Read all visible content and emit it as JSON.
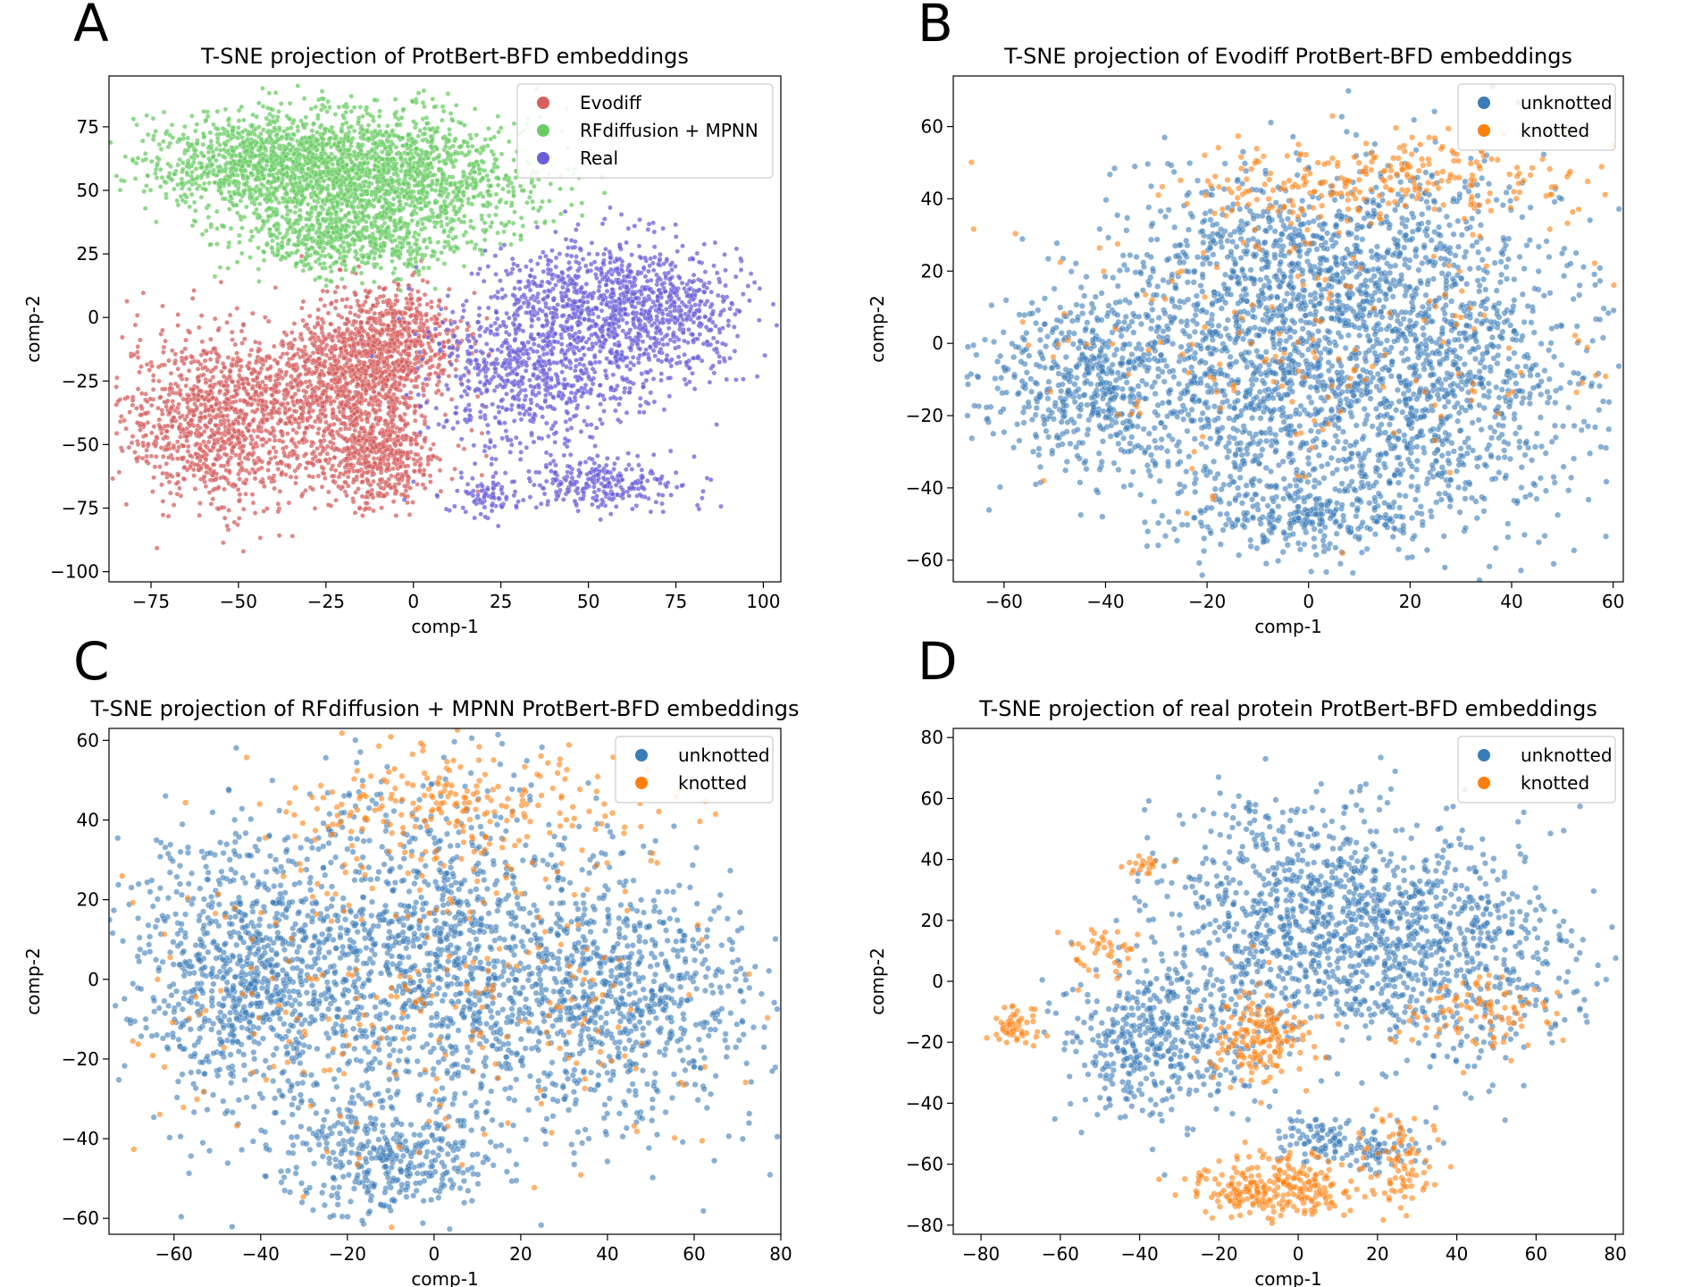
{
  "chart_data": [
    {
      "panel": "A",
      "type": "scatter",
      "title": "T-SNE projection of ProtBert-BFD embeddings",
      "xlabel": "comp-1",
      "ylabel": "comp-2",
      "xlim": [
        -87,
        105
      ],
      "ylim": [
        -104,
        95
      ],
      "xticks": [
        -75,
        -50,
        -25,
        0,
        25,
        50,
        75,
        100
      ],
      "yticks": [
        -100,
        -75,
        -50,
        -25,
        0,
        25,
        50,
        75
      ],
      "legend_position": "top-right",
      "series": [
        {
          "name": "Evodiff",
          "color": "#d65f5f",
          "clusters": [
            {
              "cx": -55,
              "cy": -40,
              "sx": 14,
              "sy": 17,
              "n": 1100
            },
            {
              "cx": -20,
              "cy": -25,
              "sx": 11,
              "sy": 15,
              "n": 900
            },
            {
              "cx": -10,
              "cy": -55,
              "sx": 9,
              "sy": 10,
              "n": 500
            },
            {
              "cx": -5,
              "cy": -10,
              "sx": 9,
              "sy": 11,
              "n": 600
            }
          ]
        },
        {
          "name": "RFdiffusion + MPNN",
          "color": "#6acc64",
          "clusters": [
            {
              "cx": -40,
              "cy": 60,
              "sx": 18,
              "sy": 10,
              "n": 1200
            },
            {
              "cx": -5,
              "cy": 55,
              "sx": 20,
              "sy": 13,
              "n": 1300
            },
            {
              "cx": -20,
              "cy": 30,
              "sx": 14,
              "sy": 7,
              "n": 500
            }
          ]
        },
        {
          "name": "Real",
          "color": "#6a5fd8",
          "clusters": [
            {
              "cx": 35,
              "cy": -20,
              "sx": 15,
              "sy": 16,
              "n": 800
            },
            {
              "cx": 70,
              "cy": 0,
              "sx": 13,
              "sy": 14,
              "n": 600
            },
            {
              "cx": 50,
              "cy": 10,
              "sx": 14,
              "sy": 11,
              "n": 400
            },
            {
              "cx": 55,
              "cy": -65,
              "sx": 13,
              "sy": 5,
              "n": 250
            },
            {
              "cx": 20,
              "cy": -70,
              "sx": 6,
              "sy": 5,
              "n": 80
            }
          ]
        }
      ]
    },
    {
      "panel": "B",
      "type": "scatter",
      "title": "T-SNE projection of Evodiff ProtBert-BFD embeddings",
      "xlabel": "comp-1",
      "ylabel": "comp-2",
      "xlim": [
        -70,
        62
      ],
      "ylim": [
        -66,
        74
      ],
      "xticks": [
        -60,
        -40,
        -20,
        0,
        20,
        40,
        60
      ],
      "yticks": [
        -60,
        -40,
        -20,
        0,
        20,
        40,
        60
      ],
      "legend_position": "top-right",
      "series": [
        {
          "name": "unknotted",
          "color": "#3a7cb8",
          "clusters": [
            {
              "cx": -45,
              "cy": -10,
              "sx": 10,
              "sy": 12,
              "n": 500
            },
            {
              "cx": -10,
              "cy": -10,
              "sx": 16,
              "sy": 22,
              "n": 1100
            },
            {
              "cx": 25,
              "cy": -10,
              "sx": 15,
              "sy": 20,
              "n": 1000
            },
            {
              "cx": 5,
              "cy": 25,
              "sx": 20,
              "sy": 13,
              "n": 700
            },
            {
              "cx": 0,
              "cy": -48,
              "sx": 12,
              "sy": 5,
              "n": 250
            }
          ]
        },
        {
          "name": "knotted",
          "color": "#ff7f0e",
          "clusters": [
            {
              "cx": 15,
              "cy": 45,
              "sx": 22,
              "sy": 6,
              "n": 250
            },
            {
              "cx": 0,
              "cy": 0,
              "sx": 28,
              "sy": 22,
              "n": 180
            }
          ]
        }
      ]
    },
    {
      "panel": "C",
      "type": "scatter",
      "title": "T-SNE projection of RFdiffusion + MPNN ProtBert-BFD embeddings",
      "xlabel": "comp-1",
      "ylabel": "comp-2",
      "xlim": [
        -75,
        80
      ],
      "ylim": [
        -64,
        63
      ],
      "xticks": [
        -60,
        -40,
        -20,
        0,
        20,
        40,
        60,
        80
      ],
      "yticks": [
        -60,
        -40,
        -20,
        0,
        20,
        40,
        60
      ],
      "legend_position": "top-right",
      "series": [
        {
          "name": "unknotted",
          "color": "#3a7cb8",
          "clusters": [
            {
              "cx": -45,
              "cy": 0,
              "sx": 13,
              "sy": 18,
              "n": 800
            },
            {
              "cx": 0,
              "cy": 5,
              "sx": 20,
              "sy": 22,
              "n": 1300
            },
            {
              "cx": 45,
              "cy": -5,
              "sx": 15,
              "sy": 16,
              "n": 700
            },
            {
              "cx": -10,
              "cy": -45,
              "sx": 12,
              "sy": 7,
              "n": 350
            }
          ]
        },
        {
          "name": "knotted",
          "color": "#ff7f0e",
          "clusters": [
            {
              "cx": 5,
              "cy": 45,
              "sx": 20,
              "sy": 7,
              "n": 200
            },
            {
              "cx": 0,
              "cy": 0,
              "sx": 35,
              "sy": 25,
              "n": 300
            }
          ]
        }
      ]
    },
    {
      "panel": "D",
      "type": "scatter",
      "title": "T-SNE projection of real protein ProtBert-BFD embeddings",
      "xlabel": "comp-1",
      "ylabel": "comp-2",
      "xlim": [
        -87,
        82
      ],
      "ylim": [
        -83,
        83
      ],
      "xticks": [
        -80,
        -60,
        -40,
        -20,
        0,
        20,
        40,
        60,
        80
      ],
      "yticks": [
        -80,
        -60,
        -40,
        -20,
        0,
        20,
        40,
        60,
        80
      ],
      "legend_position": "top-right",
      "series": [
        {
          "name": "unknotted",
          "color": "#3a7cb8",
          "clusters": [
            {
              "cx": -35,
              "cy": -20,
              "sx": 12,
              "sy": 13,
              "n": 450
            },
            {
              "cx": 0,
              "cy": 20,
              "sx": 18,
              "sy": 20,
              "n": 900
            },
            {
              "cx": 40,
              "cy": 10,
              "sx": 16,
              "sy": 18,
              "n": 600
            },
            {
              "cx": 5,
              "cy": -52,
              "sx": 5,
              "sy": 4,
              "n": 80
            },
            {
              "cx": 20,
              "cy": -55,
              "sx": 6,
              "sy": 4,
              "n": 70
            }
          ]
        },
        {
          "name": "knotted",
          "color": "#ff7f0e",
          "clusters": [
            {
              "cx": -5,
              "cy": -68,
              "sx": 10,
              "sy": 5,
              "n": 260
            },
            {
              "cx": -10,
              "cy": -18,
              "sx": 7,
              "sy": 8,
              "n": 170
            },
            {
              "cx": -72,
              "cy": -15,
              "sx": 3,
              "sy": 5,
              "n": 50
            },
            {
              "cx": -50,
              "cy": 10,
              "sx": 4,
              "sy": 5,
              "n": 40
            },
            {
              "cx": 25,
              "cy": -60,
              "sx": 5,
              "sy": 8,
              "n": 80
            },
            {
              "cx": 45,
              "cy": -10,
              "sx": 10,
              "sy": 6,
              "n": 90
            },
            {
              "cx": -40,
              "cy": 38,
              "sx": 3,
              "sy": 2,
              "n": 20
            }
          ]
        }
      ]
    }
  ]
}
